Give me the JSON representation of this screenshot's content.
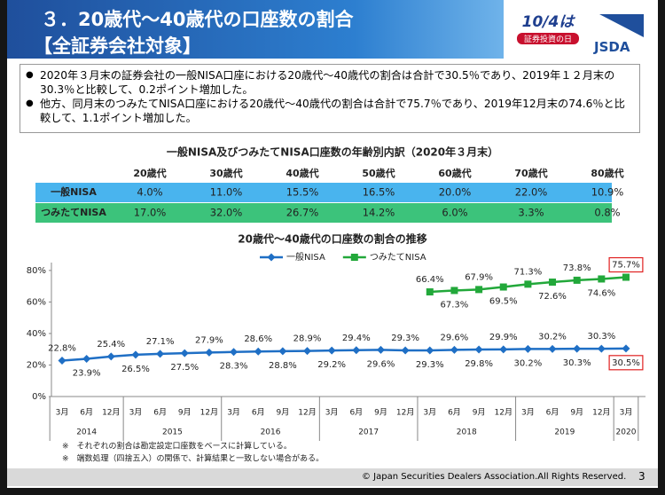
{
  "header": {
    "title": "３．20歳代～40歳代の口座数の割合",
    "subtitle": "【全証券会社対象】",
    "badge_top": "10/4は",
    "badge_bottom": "証券投資の日",
    "logo": "JSDA"
  },
  "bullets": [
    "2020年３月末の証券会社の一般NISA口座における20歳代～40歳代の割合は合計で30.5％であり、2019年１２月末の30.3％と比較して、0.2ポイント増加した。",
    "他方、同月末のつみたてNISA口座における20歳代～40歳代の割合は合計で75.7％であり、2019年12月末の74.6％と比較して、1.1ポイント増加した。"
  ],
  "table": {
    "title": "一般NISA及びつみたてNISA口座数の年齢別内訳（2020年３月末）",
    "columns": [
      "20歳代",
      "30歳代",
      "40歳代",
      "50歳代",
      "60歳代",
      "70歳代",
      "80歳代"
    ],
    "rows": [
      {
        "name": "一般NISA",
        "cells": [
          "4.0%",
          "11.0%",
          "15.5%",
          "16.5%",
          "20.0%",
          "22.0%",
          "10.9%"
        ]
      },
      {
        "name": "つみたてNISA",
        "cells": [
          "17.0%",
          "32.0%",
          "26.7%",
          "14.2%",
          "6.0%",
          "3.3%",
          "0.8%"
        ]
      }
    ]
  },
  "chart_data": {
    "type": "line",
    "title": "20歳代～40歳代の口座数の割合の推移",
    "categories": [
      "3月",
      "6月",
      "12月",
      "3月",
      "6月",
      "9月",
      "12月",
      "3月",
      "6月",
      "9月",
      "12月",
      "3月",
      "6月",
      "9月",
      "12月",
      "3月",
      "6月",
      "9月",
      "12月",
      "3月",
      "6月",
      "9月",
      "12月",
      "3月"
    ],
    "years": [
      {
        "label": "2014",
        "count": 3
      },
      {
        "label": "2015",
        "count": 4
      },
      {
        "label": "2016",
        "count": 4
      },
      {
        "label": "2017",
        "count": 4
      },
      {
        "label": "2018",
        "count": 4
      },
      {
        "label": "2019",
        "count": 4
      },
      {
        "label": "2020",
        "count": 1
      }
    ],
    "ylim": [
      0,
      85
    ],
    "yticks": [
      {
        "value": 0,
        "label": "0%"
      },
      {
        "value": 20,
        "label": "20%"
      },
      {
        "value": 40,
        "label": "40%"
      },
      {
        "value": 60,
        "label": "60%"
      },
      {
        "value": 80,
        "label": "80%"
      }
    ],
    "legend": "top",
    "series": [
      {
        "name": "一般NISA",
        "color": "#1f6fc5",
        "marker": "diamond",
        "values": [
          22.8,
          23.9,
          25.4,
          26.5,
          27.1,
          27.5,
          27.9,
          28.3,
          28.6,
          28.8,
          28.9,
          29.2,
          29.4,
          29.6,
          29.3,
          29.3,
          29.6,
          29.8,
          29.9,
          30.2,
          30.2,
          30.3,
          30.3,
          30.5
        ],
        "value_labels": [
          "22.8%",
          "23.9%",
          "25.4%",
          "26.5%",
          "27.1%",
          "27.5%",
          "27.9%",
          "28.3%",
          "28.6%",
          "28.8%",
          "28.9%",
          "29.2%",
          "29.4%",
          "29.6%",
          "29.3%",
          "29.3%",
          "29.6%",
          "29.8%",
          "29.9%",
          "30.2%",
          "30.2%",
          "30.3%",
          "30.3%",
          "30.5%"
        ]
      },
      {
        "name": "つみたてNISA",
        "color": "#22a83a",
        "marker": "square",
        "values": [
          null,
          null,
          null,
          null,
          null,
          null,
          null,
          null,
          null,
          null,
          null,
          null,
          null,
          null,
          null,
          66.4,
          67.3,
          67.9,
          69.5,
          71.3,
          72.6,
          73.8,
          74.6,
          75.7
        ],
        "value_labels": [
          null,
          null,
          null,
          null,
          null,
          null,
          null,
          null,
          null,
          null,
          null,
          null,
          null,
          null,
          null,
          "66.4%",
          "67.3%",
          "67.9%",
          "69.5%",
          "71.3%",
          "72.6%",
          "73.8%",
          "74.6%",
          "75.7%"
        ]
      }
    ],
    "notes": [
      "※　それぞれの割合は勘定設定口座数をベースに計算している。",
      "※　端数処理（四捨五入）の関係で、計算結果と一致しない場合がある。"
    ]
  },
  "footer": {
    "copyright": "© Japan Securities Dealers Association.All Rights Reserved.",
    "page": "3"
  }
}
